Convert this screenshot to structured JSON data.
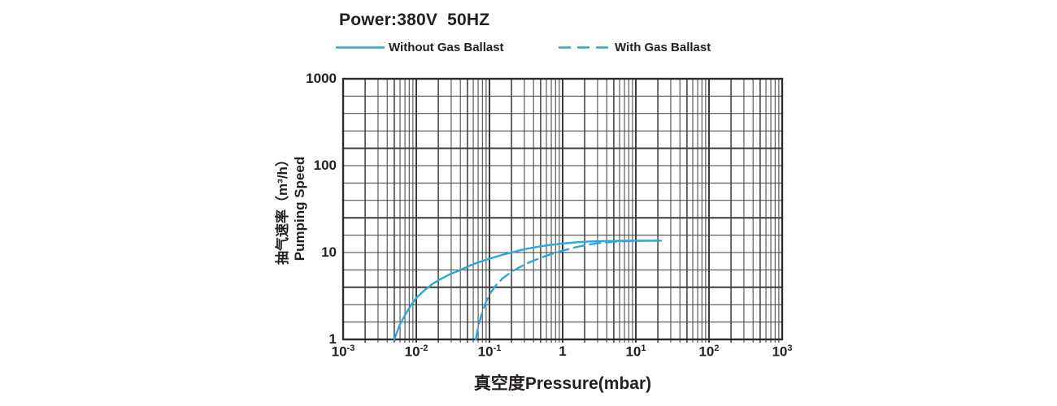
{
  "chart_data": {
    "type": "line",
    "title": "Power:380V  50HZ",
    "xlabel": "真空度Pressure(mbar)",
    "ylabel_cn": "抽气速率（m³/h）",
    "ylabel_en": "Pumping Speed",
    "x_scale": "log",
    "y_scale": "log",
    "xlim": [
      0.001,
      1000
    ],
    "ylim": [
      1,
      1000
    ],
    "grid": "on",
    "legend_position": "top",
    "x_ticks": [
      {
        "base": "10",
        "exp": "-3"
      },
      {
        "base": "10",
        "exp": "-2"
      },
      {
        "base": "10",
        "exp": "-1"
      },
      {
        "base": "1",
        "exp": ""
      },
      {
        "base": "10",
        "exp": "1"
      },
      {
        "base": "10",
        "exp": "2"
      },
      {
        "base": "10",
        "exp": "3"
      }
    ],
    "y_ticks": [
      "1000",
      "100",
      "10",
      "1"
    ],
    "legend": [
      {
        "label": "Without Gas Ballast",
        "style": "solid"
      },
      {
        "label": "With Gas Ballast",
        "style": "dashed"
      }
    ],
    "colors": {
      "curve": "#2AA7DF",
      "grid": "#3c3c3c",
      "border": "#2b2b2b",
      "text": "#231f20",
      "background": "#ffffff"
    },
    "series": [
      {
        "name": "Without Gas Ballast",
        "style": "solid",
        "points": [
          [
            0.005,
            1
          ],
          [
            0.006,
            1.5
          ],
          [
            0.007,
            1.9
          ],
          [
            0.0085,
            2.5
          ],
          [
            0.01,
            3.0
          ],
          [
            0.013,
            3.7
          ],
          [
            0.017,
            4.4
          ],
          [
            0.022,
            5.0
          ],
          [
            0.03,
            5.7
          ],
          [
            0.04,
            6.3
          ],
          [
            0.055,
            7.1
          ],
          [
            0.07,
            7.7
          ],
          [
            0.1,
            8.5
          ],
          [
            0.15,
            9.4
          ],
          [
            0.2,
            10.0
          ],
          [
            0.3,
            10.9
          ],
          [
            0.5,
            11.8
          ],
          [
            0.7,
            12.3
          ],
          [
            1,
            12.7
          ],
          [
            1.5,
            13.1
          ],
          [
            2,
            13.3
          ],
          [
            3,
            13.5
          ],
          [
            5,
            13.6
          ],
          [
            8,
            13.7
          ],
          [
            12,
            13.7
          ],
          [
            20,
            13.7
          ]
        ]
      },
      {
        "name": "With Gas Ballast",
        "style": "dashed",
        "points": [
          [
            0.065,
            1
          ],
          [
            0.07,
            1.4
          ],
          [
            0.08,
            2.1
          ],
          [
            0.09,
            2.7
          ],
          [
            0.1,
            3.3
          ],
          [
            0.12,
            4.1
          ],
          [
            0.15,
            5.0
          ],
          [
            0.2,
            6.0
          ],
          [
            0.27,
            6.9
          ],
          [
            0.35,
            7.7
          ],
          [
            0.5,
            8.7
          ],
          [
            0.7,
            9.6
          ],
          [
            1,
            10.5
          ],
          [
            1.5,
            11.5
          ],
          [
            2,
            12.1
          ],
          [
            3,
            12.8
          ],
          [
            4,
            13.1
          ],
          [
            5,
            13.3
          ],
          [
            7,
            13.5
          ],
          [
            10,
            13.6
          ],
          [
            14,
            13.7
          ],
          [
            22,
            13.7
          ]
        ]
      }
    ]
  }
}
